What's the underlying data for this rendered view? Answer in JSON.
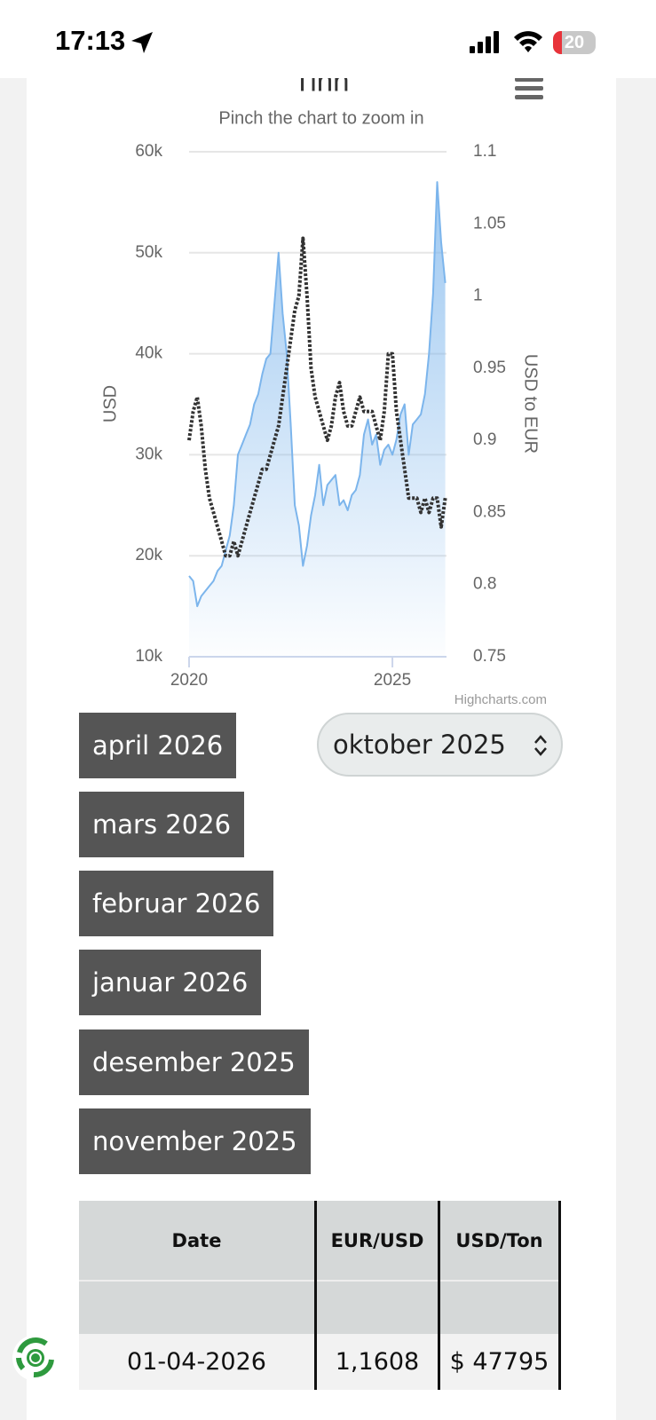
{
  "status_bar": {
    "time": "17:13",
    "battery": "20"
  },
  "chart_data": {
    "type": "line",
    "title": "Tinn",
    "subtitle": "Pinch the chart to zoom in",
    "y_label": "USD",
    "y2_label": "USD to EUR",
    "credits": "Highcharts.com",
    "x": [
      2020.0,
      2020.1,
      2020.2,
      2020.3,
      2020.4,
      2020.5,
      2020.6,
      2020.7,
      2020.8,
      2020.9,
      2021.0,
      2021.1,
      2021.2,
      2021.3,
      2021.4,
      2021.5,
      2021.6,
      2021.7,
      2021.8,
      2021.9,
      2022.0,
      2022.1,
      2022.2,
      2022.3,
      2022.4,
      2022.5,
      2022.6,
      2022.7,
      2022.8,
      2022.9,
      2023.0,
      2023.1,
      2023.2,
      2023.3,
      2023.4,
      2023.5,
      2023.6,
      2023.7,
      2023.8,
      2023.9,
      2024.0,
      2024.1,
      2024.2,
      2024.3,
      2024.4,
      2024.5,
      2024.6,
      2024.7,
      2024.8,
      2024.9,
      2025.0,
      2025.1,
      2025.2,
      2025.3,
      2025.4,
      2025.5,
      2025.6,
      2025.7,
      2025.8,
      2025.9,
      2026.0,
      2026.1,
      2026.2,
      2026.3
    ],
    "series": [
      {
        "color": "#7cb5ec",
        "area": true,
        "axis": "y",
        "values": [
          18000,
          17500,
          15000,
          16000,
          16500,
          17000,
          17500,
          18500,
          19000,
          20500,
          22000,
          25000,
          30000,
          31000,
          32000,
          33000,
          35000,
          36000,
          38000,
          39500,
          40000,
          45000,
          50000,
          44000,
          40000,
          33000,
          25000,
          23000,
          19000,
          21000,
          24000,
          26000,
          29000,
          25000,
          27000,
          27500,
          28000,
          25000,
          25500,
          24500,
          26000,
          26500,
          28000,
          32000,
          33500,
          31000,
          32000,
          29000,
          30500,
          31000,
          30000,
          31500,
          34000,
          35000,
          30000,
          33000,
          33500,
          34000,
          36000,
          40000,
          46000,
          57000,
          51000,
          47000
        ]
      },
      {
        "color": "#333333",
        "dotted": true,
        "axis": "y2",
        "values": [
          0.9,
          0.92,
          0.93,
          0.91,
          0.88,
          0.86,
          0.85,
          0.84,
          0.83,
          0.82,
          0.82,
          0.83,
          0.82,
          0.83,
          0.84,
          0.85,
          0.86,
          0.87,
          0.88,
          0.88,
          0.89,
          0.9,
          0.91,
          0.93,
          0.95,
          0.97,
          0.99,
          1.0,
          1.04,
          1.0,
          0.95,
          0.93,
          0.92,
          0.91,
          0.9,
          0.91,
          0.93,
          0.94,
          0.92,
          0.91,
          0.91,
          0.92,
          0.93,
          0.92,
          0.92,
          0.92,
          0.91,
          0.9,
          0.92,
          0.96,
          0.96,
          0.92,
          0.9,
          0.88,
          0.86,
          0.86,
          0.86,
          0.85,
          0.86,
          0.85,
          0.86,
          0.86,
          0.84,
          0.86
        ]
      }
    ],
    "xlim": [
      2020,
      2026.33
    ],
    "xticks": [
      2020,
      2025
    ],
    "ylim": [
      10000,
      60000
    ],
    "yticks": [
      {
        "value": 10000,
        "label": "10k"
      },
      {
        "value": 20000,
        "label": "20k"
      },
      {
        "value": 30000,
        "label": "30k"
      },
      {
        "value": 40000,
        "label": "40k"
      },
      {
        "value": 50000,
        "label": "50k"
      },
      {
        "value": 60000,
        "label": "60k"
      }
    ],
    "y2lim": [
      0.75,
      1.1
    ],
    "y2ticks": [
      0.75,
      0.8,
      0.85,
      0.9,
      0.95,
      1,
      1.05,
      1.1
    ],
    "grid": true
  },
  "month_buttons": [
    "april 2026",
    "mars 2026",
    "februar 2026",
    "januar 2026",
    "desember 2025",
    "november 2025"
  ],
  "month_select": "oktober 2025",
  "table": {
    "headers": [
      "Date",
      "EUR/USD",
      "USD/Ton"
    ],
    "rows": [
      [
        "01-04-2026",
        "1,1608",
        "$ 47795"
      ]
    ]
  }
}
